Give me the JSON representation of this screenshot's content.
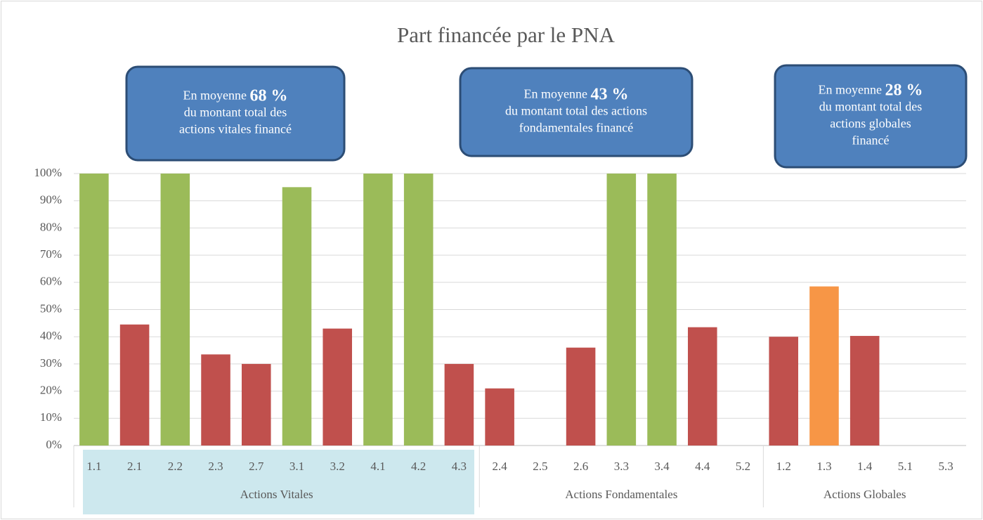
{
  "chart_data": {
    "type": "bar",
    "title": "Part financée par le PNA",
    "categories": [
      "1.1",
      "2.1",
      "2.2",
      "2.3",
      "2.7",
      "3.1",
      "3.2",
      "4.1",
      "4.2",
      "4.3",
      "2.4",
      "2.5",
      "2.6",
      "3.3",
      "3.4",
      "4.4",
      "5.2",
      "1.2",
      "1.3",
      "1.4",
      "5.1",
      "5.3"
    ],
    "values": [
      100,
      44.5,
      100,
      33.5,
      30,
      95,
      43,
      100,
      100,
      30,
      21,
      0,
      36,
      100,
      100,
      43.5,
      0,
      40,
      58.5,
      40.3,
      0,
      0
    ],
    "colors": [
      "#9bbb59",
      "#c0504d",
      "#9bbb59",
      "#c0504d",
      "#c0504d",
      "#9bbb59",
      "#c0504d",
      "#9bbb59",
      "#9bbb59",
      "#c0504d",
      "#c0504d",
      "#c0504d",
      "#c0504d",
      "#9bbb59",
      "#9bbb59",
      "#c0504d",
      "#c0504d",
      "#c0504d",
      "#f79646",
      "#c0504d",
      "#c0504d",
      "#c0504d"
    ],
    "groups": [
      {
        "name": "Actions Vitales",
        "count": 10
      },
      {
        "name": "Actions Fondamentales",
        "count": 7
      },
      {
        "name": "Actions Globales",
        "count": 5
      }
    ],
    "ylim": [
      0,
      100
    ],
    "yticks": [
      {
        "value": 0,
        "label": "0%"
      },
      {
        "value": 10,
        "label": "10%"
      },
      {
        "value": 20,
        "label": "20%"
      },
      {
        "value": 30,
        "label": "30%"
      },
      {
        "value": 40,
        "label": "40%"
      },
      {
        "value": 50,
        "label": "50%"
      },
      {
        "value": 60,
        "label": "60%"
      },
      {
        "value": 70,
        "label": "70%"
      },
      {
        "value": 80,
        "label": "80%"
      },
      {
        "value": 90,
        "label": "90%"
      },
      {
        "value": 100,
        "label": "100%"
      }
    ],
    "grid": true,
    "annotations": [
      {
        "prefix": "En moyenne",
        "highlight": "68 %",
        "lines": [
          "du montant total des",
          "actions vitales financé"
        ]
      },
      {
        "prefix": "En moyenne",
        "highlight": "43 %",
        "lines": [
          "du montant total des actions",
          "fondamentales financé"
        ]
      },
      {
        "prefix": "En moyenne",
        "highlight": "28 %",
        "lines": [
          "du montant total des",
          "actions globales",
          "financé"
        ]
      }
    ]
  }
}
